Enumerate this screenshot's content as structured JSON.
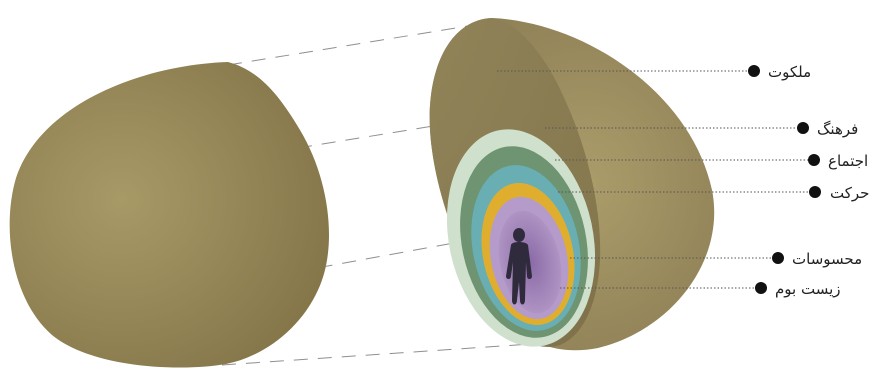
{
  "labels": {
    "malakut": "ملکوت",
    "farhang": "فرهنگ",
    "ejtema": "اجتماع",
    "harekat": "حرکت",
    "mahsusat": "محسوسات",
    "zistboom": "زیست بوم"
  },
  "colors": {
    "shell": "#a89a67",
    "shell_dark": "#7f7045",
    "cut_face": "#8a7c52",
    "layer_culture": "#cfe0cc",
    "layer_society": "#6f9472",
    "layer_movement": "#69aeb3",
    "layer_senses": "#e0ae2e",
    "layer_habitat_light": "#b59bc9",
    "layer_habitat_dark": "#8a6aa6",
    "human": "#2f2b3d",
    "dashed": "#8f8f8f",
    "leader": "#555555",
    "dot": "#111111"
  },
  "icons": {
    "human": "human-silhouette-icon",
    "bullet": "bullet-dot-icon"
  }
}
